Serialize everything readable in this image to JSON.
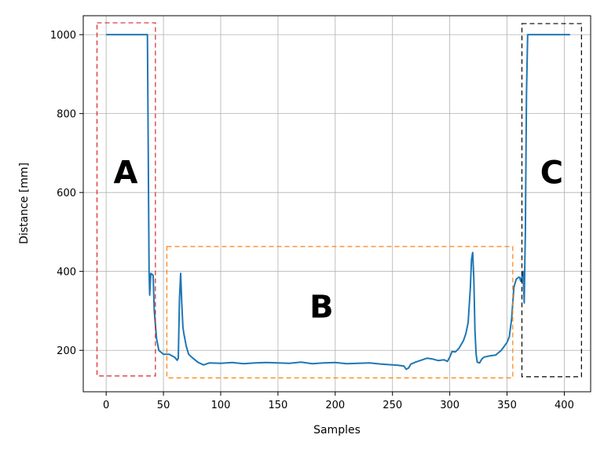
{
  "chart_data": {
    "type": "line",
    "title": "",
    "xlabel": "Samples",
    "ylabel": "Distance [mm]",
    "xlim": [
      -20,
      423
    ],
    "ylim": [
      95,
      1048
    ],
    "xticks": [
      0,
      50,
      100,
      150,
      200,
      250,
      300,
      350,
      400
    ],
    "yticks": [
      200,
      400,
      600,
      800,
      1000
    ],
    "grid": true,
    "series": [
      {
        "color": "#1f77b4",
        "x": [
          0,
          36,
          37,
          37.5,
          38,
          39,
          41,
          42,
          44,
          46,
          50,
          55,
          60,
          62,
          63,
          64,
          65,
          66,
          67,
          68,
          70,
          72,
          75,
          80,
          85,
          90,
          100,
          110,
          120,
          130,
          140,
          150,
          160,
          170,
          180,
          190,
          200,
          210,
          220,
          230,
          240,
          250,
          255,
          260,
          262,
          264,
          266,
          270,
          275,
          280,
          285,
          290,
          295,
          298,
          300,
          302,
          305,
          308,
          310,
          312,
          314,
          316,
          318,
          319,
          320,
          321,
          322,
          323,
          324,
          326,
          328,
          330,
          335,
          340,
          345,
          350,
          352,
          354,
          356,
          358,
          360,
          361,
          362,
          363,
          364,
          365,
          365.5,
          366,
          367,
          368,
          370,
          375,
          380,
          390,
          400,
          405
        ],
        "values": [
          1000,
          1000,
          600,
          400,
          340,
          395,
          390,
          300,
          230,
          200,
          190,
          190,
          182,
          175,
          180,
          330,
          395,
          320,
          258,
          240,
          210,
          190,
          182,
          170,
          163,
          168,
          167,
          169,
          166,
          168,
          169,
          168,
          167,
          170,
          166,
          168,
          169,
          166,
          167,
          168,
          165,
          163,
          162,
          160,
          152,
          155,
          165,
          170,
          175,
          180,
          178,
          174,
          176,
          172,
          183,
          197,
          196,
          205,
          215,
          225,
          242,
          270,
          360,
          430,
          448,
          380,
          250,
          190,
          170,
          168,
          178,
          183,
          186,
          188,
          200,
          220,
          235,
          280,
          360,
          380,
          385,
          385,
          375,
          385,
          400,
          320,
          420,
          500,
          850,
          1000,
          1000,
          1000,
          1000,
          1000,
          1000,
          1000
        ]
      }
    ],
    "regions": [
      {
        "label": "A",
        "color": "#d62728",
        "x0": -8,
        "x1": 43,
        "y0": 135,
        "y1": 1030,
        "label_x": 17,
        "label_y": 645
      },
      {
        "label": "B",
        "color": "#ff7f0e",
        "x0": 53,
        "x1": 355,
        "y0": 130,
        "y1": 463,
        "label_x": 188,
        "label_y": 305
      },
      {
        "label": "C",
        "color": "#000000",
        "x0": 363,
        "x1": 415,
        "y0": 133,
        "y1": 1028,
        "label_x": 389,
        "label_y": 645
      }
    ]
  }
}
